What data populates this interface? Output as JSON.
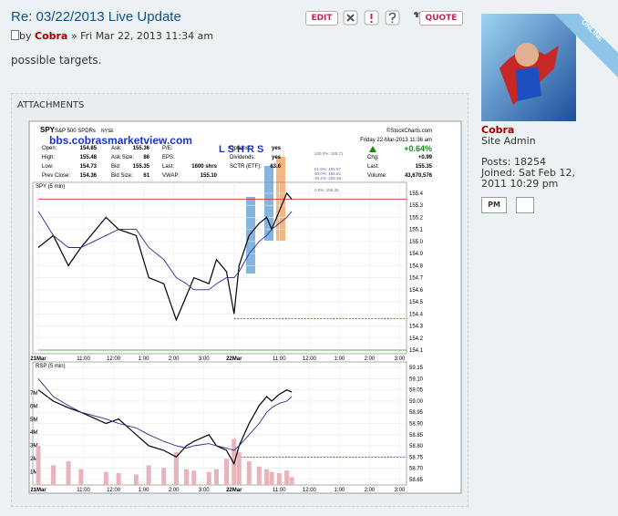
{
  "post": {
    "title": "Re: 03/22/2013 Live Update",
    "author_prefix": "by",
    "author": "Cobra",
    "date": "» Fri Mar 22, 2013 11:34 am",
    "body": "possible targets.",
    "edit_button": "EDIT",
    "quote_button": "QUOTE",
    "attachments_label": "ATTACHMENTS"
  },
  "profile": {
    "status": "ONLINE",
    "name": "Cobra",
    "rank": "Site Admin",
    "posts_label": "Posts:",
    "posts": 18254,
    "joined_label": "Joined:",
    "joined": "Sat Feb 12, 2011 10:29 pm",
    "pm_button": "PM"
  },
  "chart_data": [
    {
      "type": "line",
      "symbol": "SPY",
      "name": "S&P 500 SPDRs",
      "exchange": "NYSE",
      "source": "©StockCharts.com",
      "watermark": "bbs.cobrasmarketview.com",
      "annotation": "L S H R S",
      "date": "Friday  22-Mar-2013 11:36 am",
      "change_pct": "+0.64%",
      "quote_columns": [
        [
          {
            "label": "Open:",
            "value": "154.85"
          },
          {
            "label": "High:",
            "value": "155.48"
          },
          {
            "label": "Low:",
            "value": "154.73"
          },
          {
            "label": "Prev Close:",
            "value": "154.36"
          }
        ],
        [
          {
            "label": "Ask:",
            "value": "155.36"
          },
          {
            "label": "Ask Size:",
            "value": "86"
          },
          {
            "label": "Bid:",
            "value": "155.35"
          },
          {
            "label": "Bid Size:",
            "value": "61"
          }
        ],
        [
          {
            "label": "P/E:"
          },
          {
            "label": "EPS:"
          },
          {
            "label": "Last:",
            "value": "1600 shrs"
          },
          {
            "label": "VWAP:",
            "value": "155.10"
          }
        ],
        [
          {
            "label": "Options:",
            "value": "yes"
          },
          {
            "label": "Dividends:",
            "value": "yes"
          },
          {
            "label": "SCTR (ETF):",
            "value": "63.6"
          }
        ],
        [
          {
            "label": "Chg:",
            "value": "+0.99"
          },
          {
            "label": "Last:",
            "value": "155.35"
          },
          {
            "label": "Volume:",
            "value": "43,670,576"
          }
        ]
      ],
      "fib_levels": [
        "100.0%: 155.71",
        "61.8%: 155.57",
        "50.0%: 155.52",
        "38.2%: 155.48",
        "0.0%: 155.35"
      ],
      "panel_title": "SPY (5 min)",
      "x": [
        0,
        6,
        12,
        17,
        27,
        32,
        39,
        44,
        50,
        55,
        59,
        62,
        68,
        71,
        75,
        78,
        80,
        84,
        88,
        91,
        93,
        96,
        99,
        101
      ],
      "series": [
        {
          "name": "SPY",
          "color": "#000000",
          "values": [
            154.95,
            155.05,
            154.8,
            154.95,
            155.2,
            155.1,
            155.05,
            154.7,
            154.65,
            154.35,
            154.55,
            154.7,
            154.65,
            154.85,
            154.75,
            154.4,
            154.8,
            155.05,
            155.15,
            155.2,
            155.1,
            155.25,
            155.4,
            155.35
          ]
        },
        {
          "name": "MA",
          "color": "#2b2b8c",
          "values": [
            155.25,
            155.05,
            154.95,
            154.95,
            155.05,
            155.1,
            155.1,
            154.95,
            154.85,
            154.7,
            154.65,
            154.6,
            154.6,
            154.65,
            154.7,
            154.7,
            154.75,
            154.9,
            155.0,
            155.05,
            155.1,
            155.15,
            155.2,
            155.25
          ]
        }
      ],
      "reference_lines": [
        {
          "value": 154.36,
          "color": "#3333cc",
          "dashed": true,
          "from": 78
        },
        {
          "value": 155.35,
          "color": "#d62020",
          "dashed": false,
          "from": 0
        },
        {
          "value": 154.1,
          "color": "#2a9a2a",
          "dashed": false,
          "from": 0
        }
      ],
      "xlim": [
        0,
        146
      ],
      "xticks": [
        {
          "value": 0,
          "label": "21Mar"
        },
        {
          "value": 18,
          "label": "11:00"
        },
        {
          "value": 30,
          "label": "12:00"
        },
        {
          "value": 42,
          "label": "1:00"
        },
        {
          "value": 54,
          "label": "2:00"
        },
        {
          "value": 66,
          "label": "3:00"
        },
        {
          "value": 78,
          "label": "22Mar"
        },
        {
          "value": 96,
          "label": "11:00"
        },
        {
          "value": 108,
          "label": "12:00"
        },
        {
          "value": 120,
          "label": "1:00"
        },
        {
          "value": 132,
          "label": "2:00"
        },
        {
          "value": 144,
          "label": "3:00"
        }
      ],
      "ylim": [
        154.07,
        155.49
      ],
      "yticks": [
        155.4,
        155.3,
        155.2,
        155.1,
        {
          "value": 155.0,
          "label": "155.0"
        },
        154.9,
        154.8,
        154.7,
        154.6,
        154.5,
        154.4,
        154.3,
        154.2,
        154.1
      ],
      "grid": true
    },
    {
      "type": "line",
      "panel_title": "RSP (5 min)",
      "x": [
        0,
        6,
        12,
        17,
        27,
        32,
        39,
        44,
        50,
        55,
        59,
        62,
        68,
        71,
        75,
        78,
        80,
        84,
        88,
        91,
        93,
        96,
        99,
        101
      ],
      "series": [
        {
          "name": "Volume",
          "color": "#e8b4bc",
          "style": "bar",
          "axis": "y2",
          "values": [
            3000000,
            1500000,
            1800000,
            1200000,
            1000000,
            900000,
            800000,
            1500000,
            1300000,
            2500000,
            1200000,
            1100000,
            1000000,
            1200000,
            2000000,
            3500000,
            2500000,
            1800000,
            1400000,
            1200000,
            1000000,
            900000,
            1100000,
            600000
          ]
        },
        {
          "name": "RSP",
          "color": "#000000",
          "values": [
            59.05,
            59.0,
            58.97,
            58.95,
            58.9,
            58.92,
            58.85,
            58.8,
            58.78,
            58.75,
            58.8,
            58.82,
            58.85,
            58.8,
            58.78,
            58.72,
            58.8,
            58.9,
            58.98,
            59.02,
            59.0,
            59.03,
            59.05,
            59.04
          ]
        },
        {
          "name": "MA",
          "color": "#2b2b8c",
          "values": [
            59.1,
            59.02,
            58.98,
            58.95,
            58.92,
            58.9,
            58.88,
            58.85,
            58.82,
            58.8,
            58.79,
            58.8,
            58.81,
            58.8,
            58.79,
            58.78,
            58.8,
            58.85,
            58.9,
            58.95,
            58.97,
            58.99,
            59.0,
            59.02
          ]
        }
      ],
      "reference_lines": [
        {
          "value": 58.75,
          "color": "#3333cc",
          "dashed": true,
          "from": 78
        }
      ],
      "xlim": [
        0,
        146
      ],
      "xticks": [
        {
          "value": 0,
          "label": "21Mar"
        },
        {
          "value": 18,
          "label": "11:00"
        },
        {
          "value": 30,
          "label": "12:00"
        },
        {
          "value": 42,
          "label": "1:00"
        },
        {
          "value": 54,
          "label": "2:00"
        },
        {
          "value": 66,
          "label": "3:00"
        },
        {
          "value": 78,
          "label": "22Mar"
        },
        {
          "value": 96,
          "label": "11:00"
        },
        {
          "value": 108,
          "label": "12:00"
        },
        {
          "value": 120,
          "label": "1:00"
        },
        {
          "value": 132,
          "label": "2:00"
        },
        {
          "value": 144,
          "label": "3:00"
        }
      ],
      "ylim": [
        58.625,
        59.175
      ],
      "yticks": [
        59.15,
        {
          "value": 59.1,
          "label": "59.10"
        },
        59.05,
        {
          "value": 59.0,
          "label": "59.00"
        },
        58.95,
        {
          "value": 58.9,
          "label": "58.90"
        },
        58.85,
        {
          "value": 58.8,
          "label": "58.80"
        },
        58.75,
        {
          "value": 58.7,
          "label": "58.70"
        },
        58.65
      ],
      "y2lim": [
        0,
        9350000
      ],
      "y2ticks": [
        {
          "value": 7000000,
          "label": "7M"
        },
        {
          "value": 6000000,
          "label": "6M"
        },
        {
          "value": 5000000,
          "label": "5M"
        },
        {
          "value": 4000000,
          "label": "4M"
        },
        {
          "value": 3000000,
          "label": "3M"
        },
        {
          "value": 2000000,
          "label": "2M"
        },
        {
          "value": 1000000,
          "label": "1M"
        }
      ],
      "grid": true
    }
  ]
}
